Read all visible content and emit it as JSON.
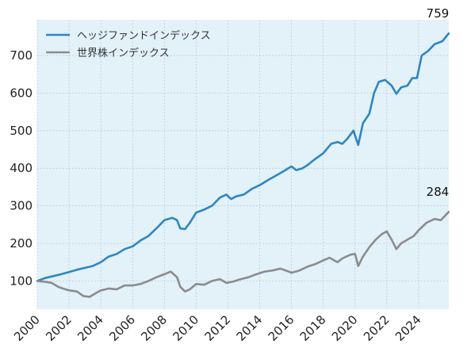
{
  "colors": {
    "plot_background": "#e3f1f9",
    "hedge": "#2e86c1",
    "world": "#8c8c8c",
    "text": "#222222",
    "grid": "#b9c7d1"
  },
  "chart_data": {
    "type": "line",
    "title": "",
    "xlabel": "",
    "ylabel": "",
    "xlim": [
      2000,
      2025.9
    ],
    "ylim": [
      25,
      795
    ],
    "grid": true,
    "legend_position": "top-left",
    "x_ticks": [
      {
        "value": 2000,
        "label": "2000"
      },
      {
        "value": 2002,
        "label": "2002"
      },
      {
        "value": 2004,
        "label": "2004"
      },
      {
        "value": 2006,
        "label": "2006"
      },
      {
        "value": 2008,
        "label": "2008"
      },
      {
        "value": 2010,
        "label": "2010"
      },
      {
        "value": 2012,
        "label": "2012"
      },
      {
        "value": 2014,
        "label": "2014"
      },
      {
        "value": 2016,
        "label": "2016"
      },
      {
        "value": 2018,
        "label": "2018"
      },
      {
        "value": 2020,
        "label": "2020"
      },
      {
        "value": 2022,
        "label": "2022"
      },
      {
        "value": 2024,
        "label": "2024"
      }
    ],
    "y_ticks": [
      {
        "value": 100,
        "label": "100"
      },
      {
        "value": 200,
        "label": "200"
      },
      {
        "value": 300,
        "label": "300"
      },
      {
        "value": 400,
        "label": "400"
      },
      {
        "value": 500,
        "label": "500"
      },
      {
        "value": 600,
        "label": "600"
      },
      {
        "value": 700,
        "label": "700"
      }
    ],
    "series": [
      {
        "name": "ヘッジファンドインデックス",
        "color_key": "hedge",
        "end_label": "759",
        "points": [
          [
            2000.0,
            100
          ],
          [
            2000.5,
            108
          ],
          [
            2001.0,
            113
          ],
          [
            2001.5,
            118
          ],
          [
            2002.0,
            124
          ],
          [
            2002.5,
            130
          ],
          [
            2003.0,
            135
          ],
          [
            2003.5,
            140
          ],
          [
            2004.0,
            150
          ],
          [
            2004.5,
            165
          ],
          [
            2005.0,
            172
          ],
          [
            2005.5,
            185
          ],
          [
            2006.0,
            192
          ],
          [
            2006.5,
            208
          ],
          [
            2007.0,
            220
          ],
          [
            2007.5,
            240
          ],
          [
            2008.0,
            262
          ],
          [
            2008.5,
            268
          ],
          [
            2008.8,
            262
          ],
          [
            2009.0,
            240
          ],
          [
            2009.3,
            238
          ],
          [
            2009.6,
            255
          ],
          [
            2010.0,
            282
          ],
          [
            2010.5,
            290
          ],
          [
            2011.0,
            300
          ],
          [
            2011.5,
            322
          ],
          [
            2011.9,
            330
          ],
          [
            2012.2,
            318
          ],
          [
            2012.5,
            325
          ],
          [
            2013.0,
            330
          ],
          [
            2013.5,
            345
          ],
          [
            2014.0,
            355
          ],
          [
            2014.5,
            368
          ],
          [
            2015.0,
            380
          ],
          [
            2015.5,
            392
          ],
          [
            2016.0,
            405
          ],
          [
            2016.3,
            395
          ],
          [
            2016.7,
            400
          ],
          [
            2017.0,
            408
          ],
          [
            2017.5,
            425
          ],
          [
            2018.0,
            440
          ],
          [
            2018.5,
            465
          ],
          [
            2018.9,
            470
          ],
          [
            2019.2,
            465
          ],
          [
            2019.5,
            478
          ],
          [
            2019.9,
            500
          ],
          [
            2020.2,
            462
          ],
          [
            2020.5,
            520
          ],
          [
            2020.9,
            545
          ],
          [
            2021.2,
            600
          ],
          [
            2021.5,
            630
          ],
          [
            2021.9,
            635
          ],
          [
            2022.3,
            620
          ],
          [
            2022.6,
            598
          ],
          [
            2022.9,
            615
          ],
          [
            2023.3,
            620
          ],
          [
            2023.6,
            640
          ],
          [
            2023.9,
            640
          ],
          [
            2024.2,
            700
          ],
          [
            2024.6,
            712
          ],
          [
            2025.0,
            730
          ],
          [
            2025.5,
            738
          ],
          [
            2025.9,
            759
          ]
        ]
      },
      {
        "name": "世界株インデックス",
        "color_key": "world",
        "end_label": "284",
        "points": [
          [
            2000.0,
            100
          ],
          [
            2000.5,
            98
          ],
          [
            2000.9,
            95
          ],
          [
            2001.3,
            85
          ],
          [
            2001.6,
            80
          ],
          [
            2002.0,
            75
          ],
          [
            2002.5,
            72
          ],
          [
            2002.9,
            60
          ],
          [
            2003.3,
            58
          ],
          [
            2003.7,
            68
          ],
          [
            2004.0,
            75
          ],
          [
            2004.5,
            80
          ],
          [
            2005.0,
            78
          ],
          [
            2005.5,
            88
          ],
          [
            2006.0,
            88
          ],
          [
            2006.5,
            92
          ],
          [
            2007.0,
            100
          ],
          [
            2007.5,
            110
          ],
          [
            2008.0,
            118
          ],
          [
            2008.4,
            125
          ],
          [
            2008.8,
            110
          ],
          [
            2009.0,
            85
          ],
          [
            2009.3,
            72
          ],
          [
            2009.6,
            78
          ],
          [
            2010.0,
            92
          ],
          [
            2010.5,
            90
          ],
          [
            2011.0,
            100
          ],
          [
            2011.5,
            105
          ],
          [
            2011.9,
            95
          ],
          [
            2012.3,
            98
          ],
          [
            2012.8,
            105
          ],
          [
            2013.3,
            110
          ],
          [
            2013.8,
            118
          ],
          [
            2014.3,
            125
          ],
          [
            2014.8,
            128
          ],
          [
            2015.3,
            133
          ],
          [
            2015.7,
            127
          ],
          [
            2016.0,
            122
          ],
          [
            2016.5,
            128
          ],
          [
            2017.0,
            138
          ],
          [
            2017.5,
            145
          ],
          [
            2018.0,
            155
          ],
          [
            2018.4,
            162
          ],
          [
            2018.9,
            150
          ],
          [
            2019.2,
            160
          ],
          [
            2019.7,
            170
          ],
          [
            2020.0,
            172
          ],
          [
            2020.2,
            140
          ],
          [
            2020.5,
            165
          ],
          [
            2020.9,
            190
          ],
          [
            2021.3,
            210
          ],
          [
            2021.7,
            225
          ],
          [
            2022.0,
            232
          ],
          [
            2022.3,
            210
          ],
          [
            2022.6,
            185
          ],
          [
            2022.9,
            200
          ],
          [
            2023.3,
            210
          ],
          [
            2023.7,
            220
          ],
          [
            2024.0,
            235
          ],
          [
            2024.5,
            255
          ],
          [
            2025.0,
            265
          ],
          [
            2025.4,
            262
          ],
          [
            2025.9,
            284
          ]
        ]
      }
    ]
  }
}
